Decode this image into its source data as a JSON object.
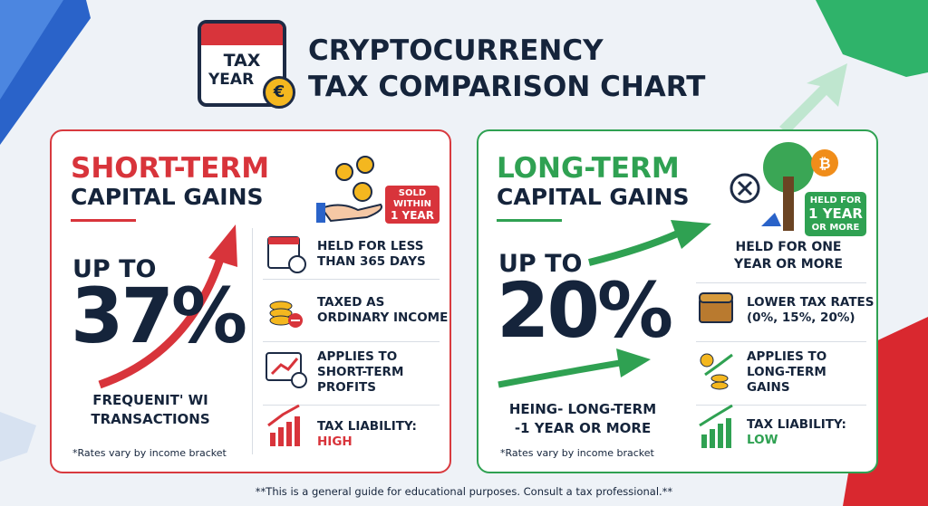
{
  "header": {
    "icon": {
      "line1": "TAX",
      "line2": "YEAR",
      "symbol": "€"
    },
    "title": [
      "CRYPTOCURRENCY",
      "TAX COMPARISON CHART"
    ]
  },
  "short_term": {
    "heading": "SHORT-TERM",
    "subheading": "CAPITAL GAINS",
    "badge": [
      "SOLD",
      "WITHIN",
      "1 YEAR"
    ],
    "rate_prefix": "UP TO",
    "rate": "37%",
    "caption": [
      "FREQUENIT' WI",
      "TRANSACTIONS"
    ],
    "note": "*Rates vary by income bracket",
    "items": [
      {
        "text": [
          "HELD FOR LESS",
          "THAN 365 DAYS"
        ]
      },
      {
        "text": [
          "TAXED AS",
          "ORDINARY INCOME"
        ]
      },
      {
        "text": [
          "APPLIES TO",
          "SHORT-TERM",
          "PROFITS"
        ]
      },
      {
        "text": [
          "TAX LIABILITY:"
        ],
        "level": "HIGH"
      }
    ]
  },
  "long_term": {
    "heading": "LONG-TERM",
    "subheading": "CAPITAL GAINS",
    "badge": [
      "HELD FOR",
      "1 YEAR",
      "OR MORE"
    ],
    "held": [
      "HELD FOR ONE",
      "YEAR OR MORE"
    ],
    "rate_prefix": "UP TO",
    "rate": "20%",
    "caption": [
      "HEING- LONG-TERM",
      "-1 YEAR OR MORE"
    ],
    "note": "*Rates vary by income bracket",
    "items": [
      {
        "text": [
          "LOWER TAX RATES",
          "(0%, 15%, 20%)"
        ]
      },
      {
        "text": [
          "APPLIES TO",
          "LONG-TERM",
          "GAINS"
        ]
      },
      {
        "text": [
          "TAX LIABILITY:"
        ],
        "level": "LOW"
      }
    ]
  },
  "footer": "**This is a general guide for educational purposes. Consult a tax professional.**"
}
